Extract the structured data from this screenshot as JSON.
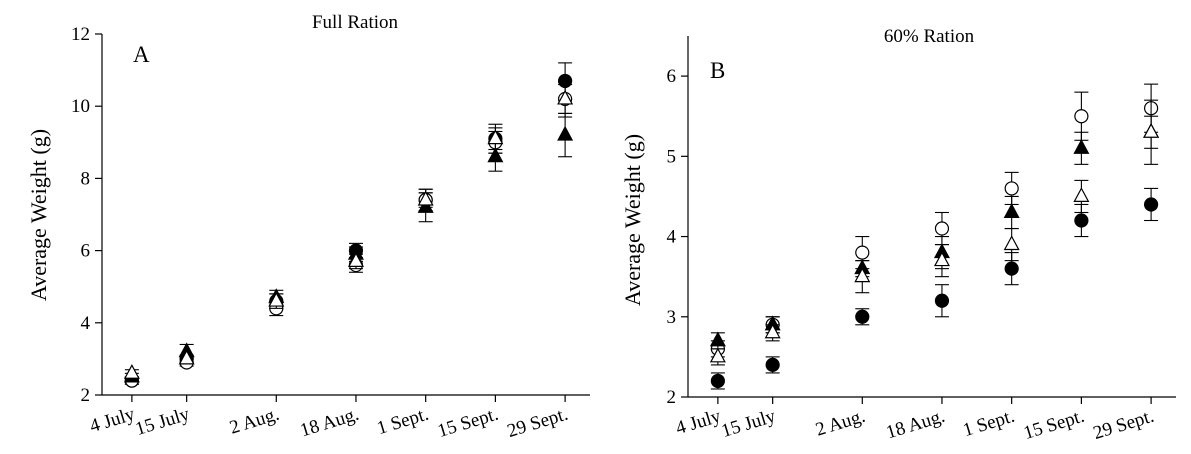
{
  "chart_data": [
    {
      "type": "scatter",
      "panel_label": "A",
      "title": "Full Ration",
      "xlabel": "",
      "ylabel": "Average Weight (g)",
      "ylim": [
        2,
        12
      ],
      "yticks": [
        2,
        4,
        6,
        8,
        10,
        12
      ],
      "categories": [
        "4 July",
        "15 July",
        "2 Aug.",
        "18 Aug.",
        "1 Sept.",
        "15 Sept.",
        "29 Sept."
      ],
      "x_days": [
        0,
        11,
        29,
        45,
        59,
        73,
        87
      ],
      "grid": false,
      "series": [
        {
          "marker": "filled-circle",
          "values": [
            2.4,
            3.0,
            4.6,
            6.0,
            7.4,
            9.1,
            10.7
          ],
          "errors": [
            0.1,
            0.1,
            0.2,
            0.2,
            0.2,
            0.3,
            0.5
          ]
        },
        {
          "marker": "open-circle",
          "values": [
            2.4,
            2.9,
            4.4,
            5.6,
            7.4,
            9.0,
            10.2
          ],
          "errors": [
            0.1,
            0.1,
            0.2,
            0.2,
            0.3,
            0.3,
            0.4
          ]
        },
        {
          "marker": "filled-triangle",
          "values": [
            2.5,
            3.2,
            4.7,
            5.9,
            7.2,
            8.6,
            9.2
          ],
          "errors": [
            0.1,
            0.2,
            0.2,
            0.2,
            0.4,
            0.4,
            0.6
          ]
        },
        {
          "marker": "open-triangle",
          "values": [
            2.6,
            3.0,
            4.6,
            5.7,
            7.4,
            9.1,
            10.2
          ],
          "errors": [
            0.1,
            0.1,
            0.2,
            0.2,
            0.3,
            0.4,
            0.5
          ]
        }
      ]
    },
    {
      "type": "scatter",
      "panel_label": "B",
      "title": "60% Ration",
      "xlabel": "",
      "ylabel": "Average Weight (g)",
      "ylim": [
        2,
        6.5
      ],
      "yticks": [
        2,
        3,
        4,
        5,
        6
      ],
      "categories": [
        "4 July",
        "15 July",
        "2 Aug.",
        "18 Aug.",
        "1 Sept.",
        "15 Sept.",
        "29 Sept."
      ],
      "x_days": [
        0,
        11,
        29,
        45,
        59,
        73,
        87
      ],
      "grid": false,
      "series": [
        {
          "marker": "filled-circle",
          "values": [
            2.2,
            2.4,
            3.0,
            3.2,
            3.6,
            4.2,
            4.4
          ],
          "errors": [
            0.1,
            0.1,
            0.1,
            0.2,
            0.2,
            0.2,
            0.2
          ]
        },
        {
          "marker": "open-circle",
          "values": [
            2.6,
            2.9,
            3.8,
            4.1,
            4.6,
            5.5,
            5.6
          ],
          "errors": [
            0.1,
            0.1,
            0.2,
            0.2,
            0.2,
            0.3,
            0.3
          ]
        },
        {
          "marker": "filled-triangle",
          "values": [
            2.7,
            2.9,
            3.6,
            3.8,
            4.3,
            5.1,
            5.3
          ],
          "errors": [
            0.1,
            0.1,
            0.1,
            0.2,
            0.2,
            0.2,
            0.2
          ]
        },
        {
          "marker": "open-triangle",
          "values": [
            2.5,
            2.8,
            3.5,
            3.7,
            3.9,
            4.5,
            5.3
          ],
          "errors": [
            0.1,
            0.1,
            0.2,
            0.2,
            0.2,
            0.2,
            0.4
          ]
        }
      ]
    }
  ]
}
